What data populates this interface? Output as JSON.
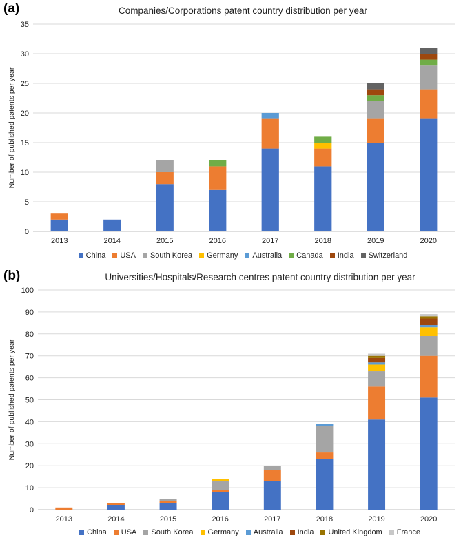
{
  "chart_data": [
    {
      "panel_label": "(a)",
      "type": "bar",
      "stacked": true,
      "title": "Companies/Corporations patent country distribution per year",
      "xlabel": "",
      "ylabel": "Number of published patents per year",
      "ylim": [
        0,
        35
      ],
      "yticks": [
        "0",
        "5",
        "10",
        "15",
        "20",
        "25",
        "30",
        "35"
      ],
      "grid": true,
      "legend": "bottom",
      "categories": [
        "2013",
        "2014",
        "2015",
        "2016",
        "2017",
        "2018",
        "2019",
        "2020"
      ],
      "series": [
        {
          "name": "China",
          "color": "#4472c4",
          "values": [
            2,
            2,
            8,
            7,
            14,
            11,
            15,
            19
          ]
        },
        {
          "name": "USA",
          "color": "#ed7d31",
          "values": [
            1,
            0,
            2,
            4,
            5,
            3,
            4,
            5
          ]
        },
        {
          "name": "South Korea",
          "color": "#a5a5a5",
          "values": [
            0,
            0,
            2,
            0,
            0,
            0,
            3,
            4
          ]
        },
        {
          "name": "Germany",
          "color": "#ffc000",
          "values": [
            0,
            0,
            0,
            0,
            0,
            1,
            0,
            0
          ]
        },
        {
          "name": "Australia",
          "color": "#5b9bd5",
          "values": [
            0,
            0,
            0,
            0,
            1,
            0,
            0,
            0
          ]
        },
        {
          "name": "Canada",
          "color": "#70ad47",
          "values": [
            0,
            0,
            0,
            1,
            0,
            1,
            1,
            1
          ]
        },
        {
          "name": "India",
          "color": "#9e480e",
          "values": [
            0,
            0,
            0,
            0,
            0,
            0,
            1,
            1
          ]
        },
        {
          "name": "Switzerland",
          "color": "#636363",
          "values": [
            0,
            0,
            0,
            0,
            0,
            0,
            1,
            1
          ]
        }
      ]
    },
    {
      "panel_label": "(b)",
      "type": "bar",
      "stacked": true,
      "title": "Universities/Hospitals/Research centres patent country distribution per year",
      "xlabel": "",
      "ylabel": "Number of published patents per year",
      "ylim": [
        0,
        100
      ],
      "yticks": [
        "0",
        "10",
        "20",
        "30",
        "40",
        "50",
        "60",
        "70",
        "80",
        "90",
        "100"
      ],
      "grid": true,
      "legend": "bottom",
      "categories": [
        "2013",
        "2014",
        "2015",
        "2016",
        "2017",
        "2018",
        "2019",
        "2020"
      ],
      "series": [
        {
          "name": "China",
          "color": "#4472c4",
          "values": [
            0,
            2,
            3,
            8,
            13,
            23,
            41,
            51
          ]
        },
        {
          "name": "USA",
          "color": "#ed7d31",
          "values": [
            1,
            1,
            1,
            1,
            5,
            3,
            15,
            19
          ]
        },
        {
          "name": "South Korea",
          "color": "#a5a5a5",
          "values": [
            0,
            0,
            1,
            4,
            2,
            12,
            7,
            9
          ]
        },
        {
          "name": "Germany",
          "color": "#ffc000",
          "values": [
            0,
            0,
            0,
            1,
            0,
            0,
            3,
            4
          ]
        },
        {
          "name": "Australia",
          "color": "#5b9bd5",
          "values": [
            0,
            0,
            0,
            0,
            0,
            1,
            1,
            1
          ]
        },
        {
          "name": "India",
          "color": "#9e480e",
          "values": [
            0,
            0,
            0,
            0,
            0,
            0,
            2,
            3
          ]
        },
        {
          "name": "United Kingdom",
          "color": "#997300",
          "values": [
            0,
            0,
            0,
            0,
            0,
            0,
            1,
            1
          ]
        },
        {
          "name": "France",
          "color": "#c8c8c8",
          "values": [
            0,
            0,
            0,
            0,
            0,
            0,
            1,
            1
          ]
        }
      ]
    }
  ]
}
